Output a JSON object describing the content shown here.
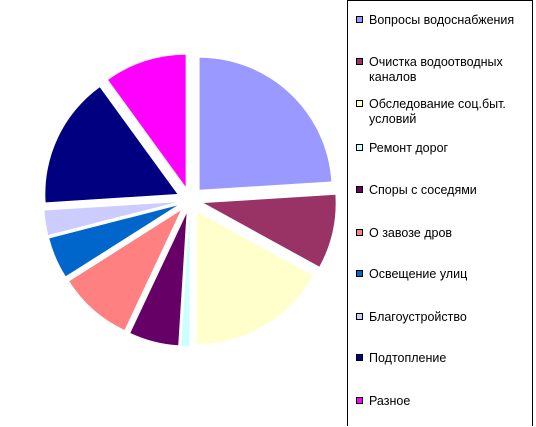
{
  "chart_data": {
    "type": "pie",
    "exploded": true,
    "legend_position": "right",
    "slices": [
      {
        "label": "Вопросы водоснабжения",
        "value": 24,
        "color": "#9999ff"
      },
      {
        "label": "Очистка водоотводных каналов",
        "value": 9,
        "color": "#993366"
      },
      {
        "label": "Обследование соц.быт. условий",
        "value": 17,
        "color": "#ffffcc"
      },
      {
        "label": "Ремонт дорог",
        "value": 1,
        "color": "#ccffff"
      },
      {
        "label": "Споры с соседями",
        "value": 6,
        "color": "#660066"
      },
      {
        "label": "О завозе дров",
        "value": 9,
        "color": "#ff8080"
      },
      {
        "label": "Освещение улиц",
        "value": 5,
        "color": "#0066cc"
      },
      {
        "label": "Благоустройство",
        "value": 3,
        "color": "#ccccff"
      },
      {
        "label": "Подтопление",
        "value": 16,
        "color": "#000080"
      },
      {
        "label": "Разное",
        "value": 10,
        "color": "#ff00ff"
      }
    ]
  }
}
